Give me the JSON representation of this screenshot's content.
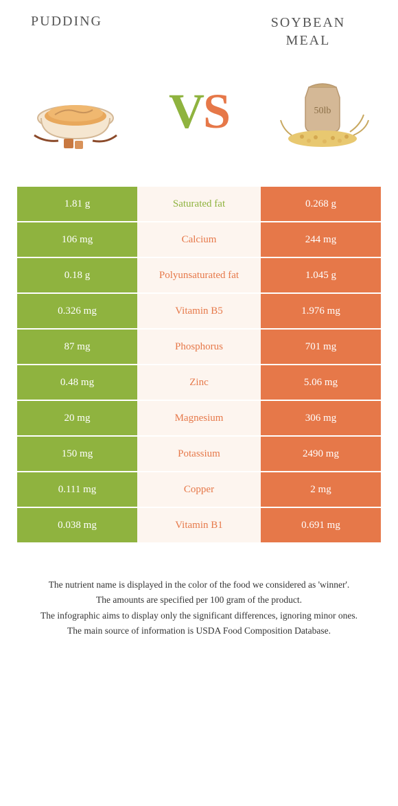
{
  "titles": {
    "left": "Pudding",
    "right_line1": "Soybean",
    "right_line2": "meal"
  },
  "vs": {
    "v": "V",
    "s": "S"
  },
  "colors": {
    "green": "#8fb33f",
    "orange": "#e67849",
    "mid_bg": "#fdf5ef",
    "label_green": "#8fb33f",
    "label_orange": "#e67849"
  },
  "rows": [
    {
      "left": "1.81 g",
      "label": "Saturated fat",
      "right": "0.268 g",
      "winner": "green"
    },
    {
      "left": "106 mg",
      "label": "Calcium",
      "right": "244 mg",
      "winner": "orange"
    },
    {
      "left": "0.18 g",
      "label": "Polyunsaturated fat",
      "right": "1.045 g",
      "winner": "orange"
    },
    {
      "left": "0.326 mg",
      "label": "Vitamin B5",
      "right": "1.976 mg",
      "winner": "orange"
    },
    {
      "left": "87 mg",
      "label": "Phosphorus",
      "right": "701 mg",
      "winner": "orange"
    },
    {
      "left": "0.48 mg",
      "label": "Zinc",
      "right": "5.06 mg",
      "winner": "orange"
    },
    {
      "left": "20 mg",
      "label": "Magnesium",
      "right": "306 mg",
      "winner": "orange"
    },
    {
      "left": "150 mg",
      "label": "Potassium",
      "right": "2490 mg",
      "winner": "orange"
    },
    {
      "left": "0.111 mg",
      "label": "Copper",
      "right": "2 mg",
      "winner": "orange"
    },
    {
      "left": "0.038 mg",
      "label": "Vitamin B1",
      "right": "0.691 mg",
      "winner": "orange"
    }
  ],
  "footnotes": {
    "line1": "The nutrient name is displayed in the color of the food we considered as 'winner'.",
    "line2": "The amounts are specified per 100 gram of the product.",
    "line3": "The infographic aims to display only the significant differences, ignoring minor ones.",
    "line4": "The main source of information is USDA Food Composition Database."
  }
}
